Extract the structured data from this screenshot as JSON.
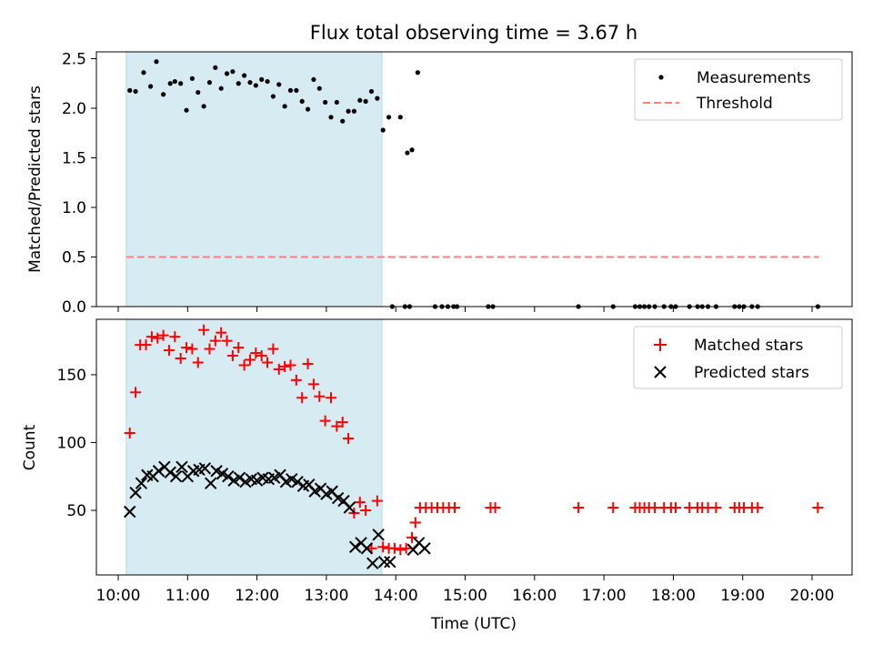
{
  "chart_data": [
    {
      "type": "scatter",
      "title": "Flux total observing time = 3.67 h",
      "xlabel": "",
      "ylabel": "Matched/Predicted stars",
      "ylim": [
        0,
        2.6
      ],
      "yticks": [
        "0.0",
        "0.5",
        "1.0",
        "1.5",
        "2.0",
        "2.5"
      ],
      "highlight_span": [
        "10:07",
        "13:48"
      ],
      "highlight_color": "#add8e6",
      "legend": {
        "position": "top-right",
        "entries": [
          "Measurements",
          "Threshold"
        ]
      },
      "threshold": {
        "name": "Threshold",
        "value": 0.5,
        "x": [
          "10:07",
          "20:06"
        ],
        "color": "#ff7f7f"
      },
      "series": [
        {
          "name": "Measurements",
          "color": "#000000",
          "points": [
            [
              "10:10",
              2.18
            ],
            [
              "10:15",
              2.17
            ],
            [
              "10:22",
              2.36
            ],
            [
              "10:28",
              2.22
            ],
            [
              "10:33",
              2.47
            ],
            [
              "10:39",
              2.14
            ],
            [
              "10:45",
              2.25
            ],
            [
              "10:49",
              2.27
            ],
            [
              "10:54",
              2.25
            ],
            [
              "10:59",
              1.98
            ],
            [
              "11:04",
              2.3
            ],
            [
              "11:09",
              2.16
            ],
            [
              "11:14",
              2.02
            ],
            [
              "11:19",
              2.26
            ],
            [
              "11:24",
              2.41
            ],
            [
              "11:29",
              2.2
            ],
            [
              "11:34",
              2.35
            ],
            [
              "11:39",
              2.37
            ],
            [
              "11:44",
              2.25
            ],
            [
              "11:49",
              2.33
            ],
            [
              "11:54",
              2.26
            ],
            [
              "11:59",
              2.23
            ],
            [
              "12:04",
              2.29
            ],
            [
              "12:09",
              2.27
            ],
            [
              "12:14",
              2.12
            ],
            [
              "12:19",
              2.24
            ],
            [
              "12:24",
              2.02
            ],
            [
              "12:29",
              2.18
            ],
            [
              "12:34",
              2.18
            ],
            [
              "12:39",
              2.07
            ],
            [
              "12:44",
              1.99
            ],
            [
              "12:49",
              2.29
            ],
            [
              "12:54",
              2.2
            ],
            [
              "12:59",
              2.06
            ],
            [
              "13:04",
              1.91
            ],
            [
              "13:09",
              2.06
            ],
            [
              "13:14",
              1.87
            ],
            [
              "13:19",
              1.97
            ],
            [
              "13:24",
              1.97
            ],
            [
              "13:29",
              2.08
            ],
            [
              "13:34",
              2.07
            ],
            [
              "13:39",
              2.17
            ],
            [
              "13:44",
              2.1
            ],
            [
              "13:49",
              1.78
            ],
            [
              "13:54",
              1.91
            ],
            [
              "14:04",
              1.91
            ],
            [
              "14:10",
              1.55
            ],
            [
              "14:14",
              1.58
            ],
            [
              "14:19",
              2.36
            ],
            [
              "13:57",
              0
            ],
            [
              "14:08",
              0
            ],
            [
              "14:12",
              0
            ],
            [
              "14:34",
              0
            ],
            [
              "14:40",
              0
            ],
            [
              "14:45",
              0
            ],
            [
              "14:50",
              0
            ],
            [
              "14:53",
              0
            ],
            [
              "15:20",
              0
            ],
            [
              "15:24",
              0
            ],
            [
              "16:38",
              0
            ],
            [
              "17:08",
              0
            ],
            [
              "17:27",
              0
            ],
            [
              "17:31",
              0
            ],
            [
              "17:35",
              0
            ],
            [
              "17:39",
              0
            ],
            [
              "17:44",
              0
            ],
            [
              "17:52",
              0
            ],
            [
              "17:58",
              0
            ],
            [
              "18:02",
              0
            ],
            [
              "18:14",
              0
            ],
            [
              "18:21",
              0
            ],
            [
              "18:25",
              0
            ],
            [
              "18:30",
              0
            ],
            [
              "18:37",
              0
            ],
            [
              "18:53",
              0
            ],
            [
              "18:57",
              0
            ],
            [
              "19:01",
              0
            ],
            [
              "19:08",
              0
            ],
            [
              "19:13",
              0
            ],
            [
              "20:05",
              0
            ]
          ]
        }
      ]
    },
    {
      "type": "scatter",
      "title": "",
      "xlabel": "Time (UTC)",
      "ylabel": "Count",
      "ylim": [
        2,
        190
      ],
      "yticks": [
        "50",
        "100",
        "150"
      ],
      "xticks": [
        "10:00",
        "11:00",
        "12:00",
        "13:00",
        "14:00",
        "15:00",
        "16:00",
        "17:00",
        "18:00",
        "19:00",
        "20:00"
      ],
      "highlight_span": [
        "10:07",
        "13:48"
      ],
      "highlight_color": "#add8e6",
      "legend": {
        "position": "top-right",
        "entries": [
          "Matched stars",
          "Predicted stars"
        ]
      },
      "series": [
        {
          "name": "Matched stars",
          "marker": "+",
          "color": "#ff0000",
          "points": [
            [
              "10:10",
              107
            ],
            [
              "10:15",
              137
            ],
            [
              "10:19",
              172
            ],
            [
              "10:24",
              172
            ],
            [
              "10:29",
              178
            ],
            [
              "10:34",
              177
            ],
            [
              "10:39",
              179
            ],
            [
              "10:44",
              168
            ],
            [
              "10:49",
              178
            ],
            [
              "10:54",
              162
            ],
            [
              "10:59",
              170
            ],
            [
              "11:04",
              169
            ],
            [
              "11:09",
              159
            ],
            [
              "11:14",
              183
            ],
            [
              "11:19",
              169
            ],
            [
              "11:24",
              175
            ],
            [
              "11:29",
              181
            ],
            [
              "11:34",
              175
            ],
            [
              "11:39",
              164
            ],
            [
              "11:44",
              170
            ],
            [
              "11:49",
              157
            ],
            [
              "11:54",
              161
            ],
            [
              "11:59",
              166
            ],
            [
              "12:04",
              164
            ],
            [
              "12:09",
              159
            ],
            [
              "12:14",
              169
            ],
            [
              "12:19",
              154
            ],
            [
              "12:24",
              156
            ],
            [
              "12:29",
              157
            ],
            [
              "12:34",
              146
            ],
            [
              "12:39",
              133
            ],
            [
              "12:44",
              158
            ],
            [
              "12:49",
              143
            ],
            [
              "12:54",
              134
            ],
            [
              "12:59",
              116
            ],
            [
              "13:04",
              133
            ],
            [
              "13:09",
              112
            ],
            [
              "13:14",
              115
            ],
            [
              "13:19",
              103
            ],
            [
              "13:24",
              48
            ],
            [
              "13:29",
              56
            ],
            [
              "13:34",
              50
            ],
            [
              "13:39",
              22
            ],
            [
              "13:44",
              57
            ],
            [
              "13:49",
              23
            ],
            [
              "13:54",
              22
            ],
            [
              "13:59",
              22
            ],
            [
              "14:04",
              21
            ],
            [
              "14:09",
              22
            ],
            [
              "14:14",
              30
            ],
            [
              "14:17",
              41
            ],
            [
              "14:21",
              52
            ],
            [
              "14:26",
              52
            ],
            [
              "14:31",
              52
            ],
            [
              "14:36",
              52
            ],
            [
              "14:41",
              52
            ],
            [
              "14:46",
              52
            ],
            [
              "14:51",
              52
            ],
            [
              "15:22",
              52
            ],
            [
              "15:26",
              52
            ],
            [
              "16:38",
              52
            ],
            [
              "17:08",
              52
            ],
            [
              "17:27",
              52
            ],
            [
              "17:31",
              52
            ],
            [
              "17:35",
              52
            ],
            [
              "17:39",
              52
            ],
            [
              "17:44",
              52
            ],
            [
              "17:52",
              52
            ],
            [
              "17:58",
              52
            ],
            [
              "18:02",
              52
            ],
            [
              "18:14",
              52
            ],
            [
              "18:21",
              52
            ],
            [
              "18:25",
              52
            ],
            [
              "18:30",
              52
            ],
            [
              "18:37",
              52
            ],
            [
              "18:53",
              52
            ],
            [
              "18:57",
              52
            ],
            [
              "19:01",
              52
            ],
            [
              "19:08",
              52
            ],
            [
              "19:13",
              52
            ],
            [
              "20:05",
              52
            ]
          ]
        },
        {
          "name": "Predicted stars",
          "marker": "x",
          "color": "#000000",
          "points": [
            [
              "10:10",
              49
            ],
            [
              "10:15",
              63
            ],
            [
              "10:20",
              70
            ],
            [
              "10:25",
              76
            ],
            [
              "10:30",
              75
            ],
            [
              "10:35",
              79
            ],
            [
              "10:40",
              82
            ],
            [
              "10:45",
              78
            ],
            [
              "10:50",
              75
            ],
            [
              "10:55",
              82
            ],
            [
              "11:00",
              75
            ],
            [
              "11:05",
              79
            ],
            [
              "11:10",
              80
            ],
            [
              "11:15",
              81
            ],
            [
              "11:20",
              70
            ],
            [
              "11:25",
              79
            ],
            [
              "11:30",
              77
            ],
            [
              "11:35",
              75
            ],
            [
              "11:40",
              72
            ],
            [
              "11:45",
              74
            ],
            [
              "11:50",
              71
            ],
            [
              "11:55",
              73
            ],
            [
              "12:00",
              72
            ],
            [
              "12:05",
              74
            ],
            [
              "12:10",
              73
            ],
            [
              "12:15",
              74
            ],
            [
              "12:20",
              76
            ],
            [
              "12:25",
              71
            ],
            [
              "12:30",
              73
            ],
            [
              "12:35",
              71
            ],
            [
              "12:40",
              68
            ],
            [
              "12:45",
              69
            ],
            [
              "12:50",
              64
            ],
            [
              "12:55",
              66
            ],
            [
              "13:00",
              62
            ],
            [
              "13:05",
              64
            ],
            [
              "13:10",
              59
            ],
            [
              "13:15",
              57
            ],
            [
              "13:20",
              52
            ],
            [
              "13:25",
              23
            ],
            [
              "13:30",
              26
            ],
            [
              "13:35",
              22
            ],
            [
              "13:40",
              11
            ],
            [
              "13:45",
              32
            ],
            [
              "13:50",
              12
            ],
            [
              "13:55",
              12
            ],
            [
              "14:15",
              21
            ],
            [
              "14:20",
              26
            ],
            [
              "14:25",
              22
            ]
          ]
        }
      ]
    }
  ]
}
